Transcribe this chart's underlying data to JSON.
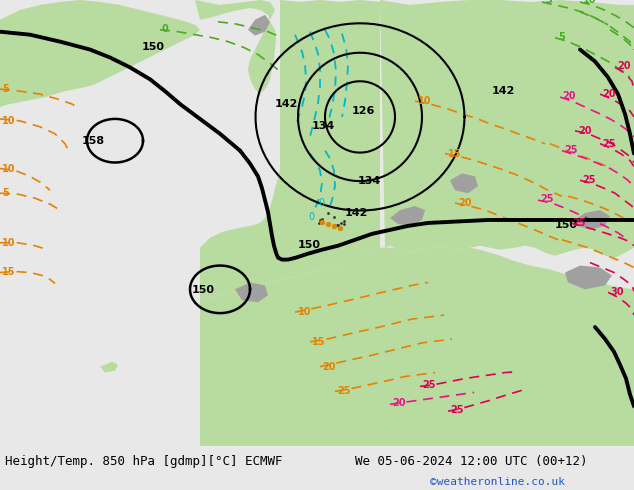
{
  "title_left": "Height/Temp. 850 hPa [gdmp][°C] ECMWF",
  "title_right": "We 05-06-2024 12:00 UTC (00+12)",
  "credit": "©weatheronline.co.uk",
  "bg_color": "#c8c8c8",
  "land_green": "#b8dca0",
  "land_green2": "#c8e8a8",
  "land_gray": "#a0a0a0",
  "ocean_color": "#c8c8c8",
  "fig_width": 6.34,
  "fig_height": 4.9,
  "dpi": 100,
  "bottom_bar_color": "#e8e8e8",
  "font_size_title": 9,
  "font_size_credit": 8,
  "credit_color": "#2255cc"
}
